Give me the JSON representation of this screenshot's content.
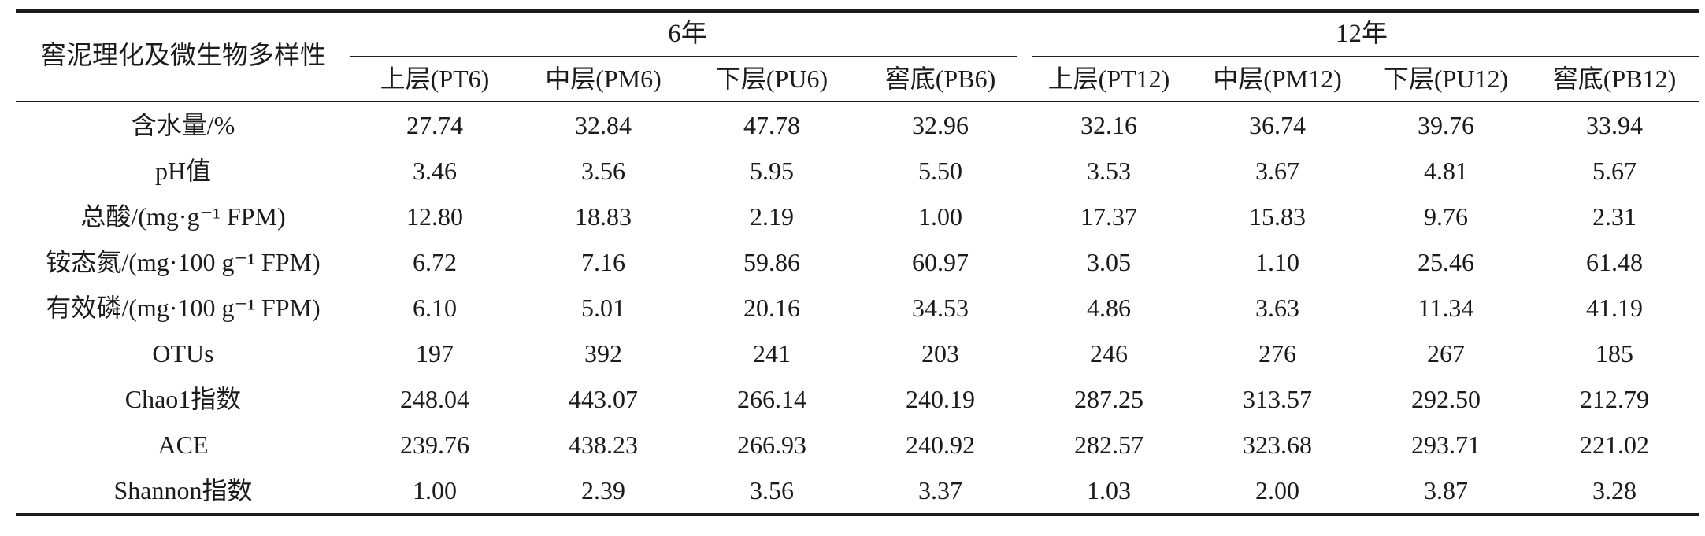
{
  "table": {
    "row_header_title": "窖泥理化及微生物多样性",
    "groups": [
      {
        "label": "6年",
        "columns": [
          "上层(PT6)",
          "中层(PM6)",
          "下层(PU6)",
          "窖底(PB6)"
        ]
      },
      {
        "label": "12年",
        "columns": [
          "上层(PT12)",
          "中层(PM12)",
          "下层(PU12)",
          "窖底(PB12)"
        ]
      }
    ],
    "rows": [
      {
        "label": "含水量/%",
        "values": [
          "27.74",
          "32.84",
          "47.78",
          "32.96",
          "32.16",
          "36.74",
          "39.76",
          "33.94"
        ]
      },
      {
        "label": "pH值",
        "values": [
          "3.46",
          "3.56",
          "5.95",
          "5.50",
          "3.53",
          "3.67",
          "4.81",
          "5.67"
        ]
      },
      {
        "label": "总酸/(mg·g⁻¹ FPM)",
        "values": [
          "12.80",
          "18.83",
          "2.19",
          "1.00",
          "17.37",
          "15.83",
          "9.76",
          "2.31"
        ]
      },
      {
        "label": "铵态氮/(mg·100 g⁻¹ FPM)",
        "values": [
          "6.72",
          "7.16",
          "59.86",
          "60.97",
          "3.05",
          "1.10",
          "25.46",
          "61.48"
        ]
      },
      {
        "label": "有效磷/(mg·100 g⁻¹ FPM)",
        "values": [
          "6.10",
          "5.01",
          "20.16",
          "34.53",
          "4.86",
          "3.63",
          "11.34",
          "41.19"
        ]
      },
      {
        "label": "OTUs",
        "values": [
          "197",
          "392",
          "241",
          "203",
          "246",
          "276",
          "267",
          "185"
        ]
      },
      {
        "label": "Chao1指数",
        "values": [
          "248.04",
          "443.07",
          "266.14",
          "240.19",
          "287.25",
          "313.57",
          "292.50",
          "212.79"
        ]
      },
      {
        "label": "ACE",
        "values": [
          "239.76",
          "438.23",
          "266.93",
          "240.92",
          "282.57",
          "323.68",
          "293.71",
          "221.02"
        ]
      },
      {
        "label": "Shannon指数",
        "values": [
          "1.00",
          "2.39",
          "3.56",
          "3.37",
          "1.03",
          "2.00",
          "3.87",
          "3.28"
        ]
      }
    ]
  },
  "colors": {
    "text": "#1b1b1b",
    "rule": "#1c1c1c",
    "background": "#ffffff"
  }
}
